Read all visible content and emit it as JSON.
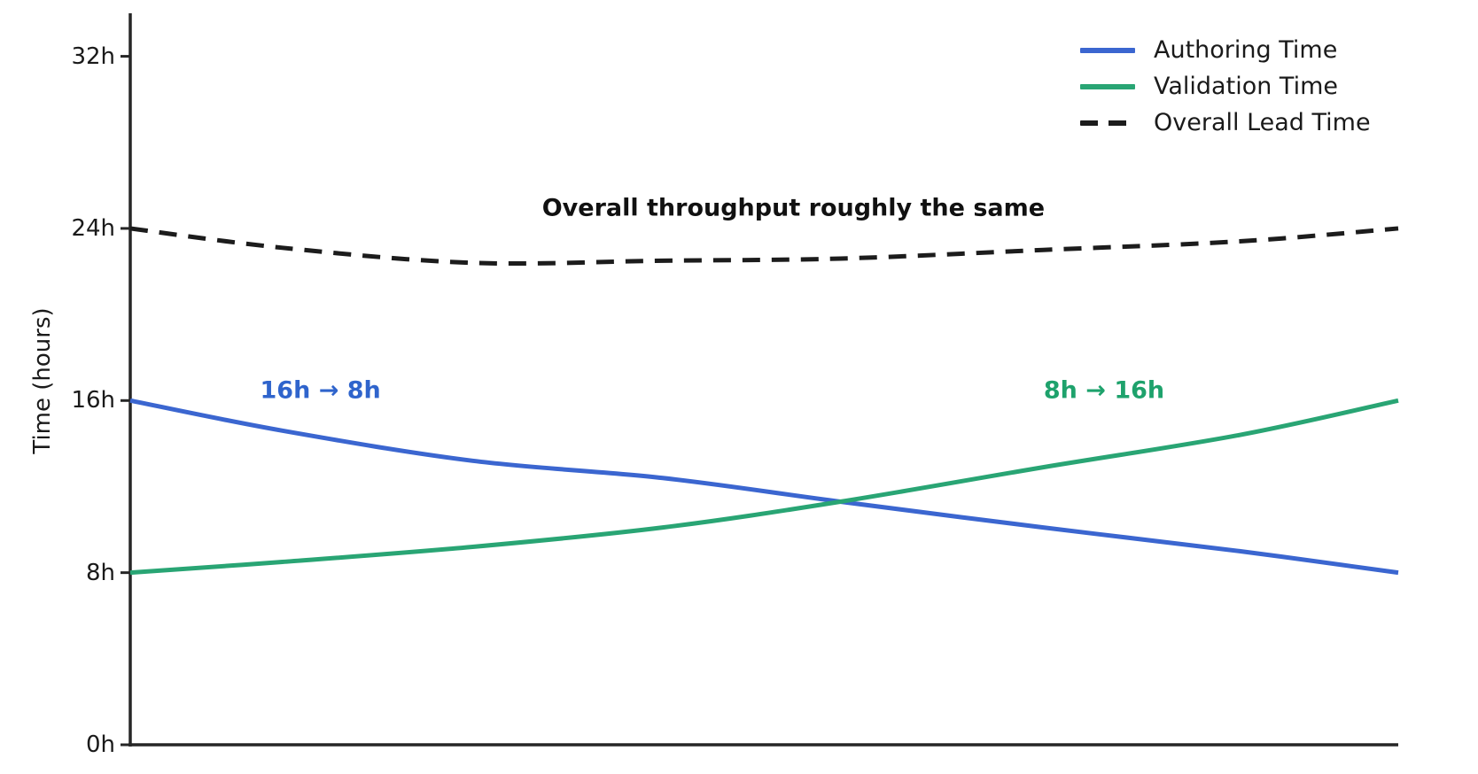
{
  "chart_data": {
    "type": "line",
    "title": "",
    "xlabel": "",
    "ylabel": "Time (hours)",
    "xlim": [
      0,
      1
    ],
    "ylim": [
      0,
      34
    ],
    "grid": false,
    "legend_position": "upper right",
    "xticks": [],
    "yticks": {
      "values": [
        0,
        8,
        16,
        24,
        32
      ],
      "labels": [
        "0h",
        "8h",
        "16h",
        "24h",
        "32h"
      ]
    },
    "x": [
      0,
      0.12,
      0.27,
      0.42,
      0.56,
      0.72,
      0.875,
      1
    ],
    "series": [
      {
        "name": "Authoring Time",
        "color": "#3b66d0",
        "dash": false,
        "values": [
          16.0,
          14.6,
          13.2,
          12.4,
          11.3,
          10.1,
          9.0,
          8.0
        ]
      },
      {
        "name": "Validation Time",
        "color": "#29a574",
        "dash": false,
        "values": [
          8.0,
          8.5,
          9.2,
          10.1,
          11.3,
          12.9,
          14.4,
          16.0
        ]
      },
      {
        "name": "Overall Lead Time",
        "color": "#1c1c1c",
        "dash": true,
        "values": [
          24.0,
          23.1,
          22.4,
          22.5,
          22.6,
          23.0,
          23.4,
          24.0
        ]
      }
    ],
    "annotations": [
      {
        "text": "Overall throughput roughly the same",
        "color": "#111111",
        "x": 0.523,
        "y_hours": 24.95
      },
      {
        "text": "16h → 8h",
        "color": "#2f64cc",
        "x": 0.15,
        "y_hours": 16.45
      },
      {
        "text": "8h → 16h",
        "color": "#1ea26c",
        "x": 0.768,
        "y_hours": 16.45
      }
    ],
    "axis_color": "#262626"
  }
}
